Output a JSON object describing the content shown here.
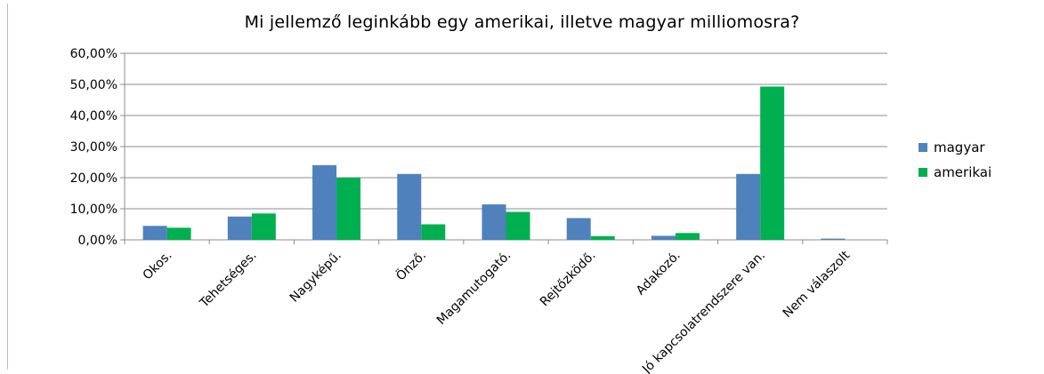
{
  "chart_data": {
    "type": "bar",
    "title": "Mi jellemző leginkább egy amerikai, illetve magyar milliomosra?",
    "xlabel": "",
    "ylabel": "",
    "ylim": [
      0,
      60
    ],
    "yticks": [
      "0,00%",
      "10,00%",
      "20,00%",
      "30,00%",
      "40,00%",
      "50,00%",
      "60,00%"
    ],
    "grid": true,
    "legend_position": "right",
    "categories": [
      "Okos.",
      "Tehetséges.",
      "Nagyképű.",
      "Önző.",
      "Magamutogató.",
      "Rejtőzködő.",
      "Adakozó.",
      "Jó kapcsolatrendszere van.",
      "Nem válaszolt"
    ],
    "series": [
      {
        "name": "magyar",
        "color": "#4f81bd",
        "values": [
          4.5,
          7.5,
          24.0,
          21.2,
          11.4,
          7.0,
          1.3,
          21.2,
          0.4
        ]
      },
      {
        "name": "amerikai",
        "color": "#00b050",
        "values": [
          3.9,
          8.5,
          20.0,
          5.0,
          9.0,
          1.2,
          2.2,
          49.3,
          0.0
        ]
      }
    ]
  }
}
